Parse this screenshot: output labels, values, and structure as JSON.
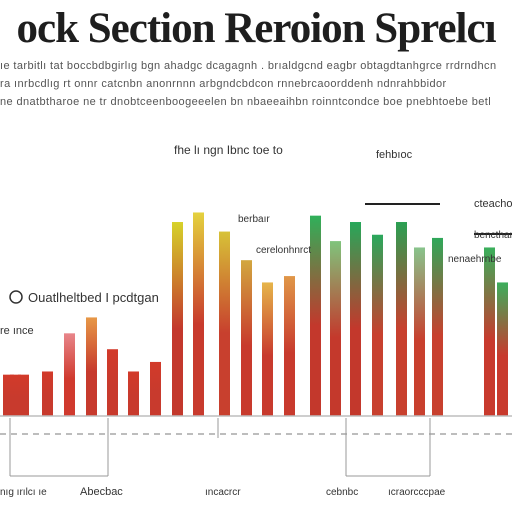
{
  "header": {
    "title": "ock Section Reroion Sprelcı",
    "subtitle_lines": [
      "ıe  tarbitlı  tat  boccbdbgirlıg  bgn  ahadgc  dcagagnh  .  brıaldgcnd  eagbr  obtagdtanhgrce  rrdrndhcn",
      "ra  ınrbcdlıg  rt  onnr  catcnbn  anonrnnn  arbgndcbdcon  rnnebrcaoorddenh  ndnrahbbidor",
      "ne  dnatbtharoe  ne  tr  dnobtceenboogeeelen  bn  nbaeeaihbn  roinntcondce  boe  pnebhtoebe  betl"
    ]
  },
  "chart_data": {
    "type": "bar",
    "title": "ock Section Reroion Sprelcı",
    "ylim": [
      0,
      100
    ],
    "x": [
      3,
      10,
      18,
      42,
      64,
      86,
      107,
      128,
      150,
      172,
      193,
      219,
      241,
      262,
      284,
      310,
      330,
      350,
      372,
      396,
      414,
      432,
      484,
      497
    ],
    "values": [
      13,
      13,
      13,
      14,
      26,
      31,
      21,
      14,
      17,
      61,
      64,
      58,
      49,
      42,
      44,
      63,
      55,
      61,
      57,
      61,
      53,
      56,
      53,
      42
    ],
    "bar_colors": [
      [
        "#d23a2a",
        "#c83a2d"
      ],
      [
        "#d23a2a",
        "#c83a2d"
      ],
      [
        "#d23a2a",
        "#c83a2d"
      ],
      [
        "#d23a2a",
        "#c83a2d"
      ],
      [
        "#e8868a",
        "#d03a2e"
      ],
      [
        "#e79847",
        "#c73a2d"
      ],
      [
        "#d23a2a",
        "#c83a2d"
      ],
      [
        "#d23a2a",
        "#c83a2d"
      ],
      [
        "#d23a2a",
        "#c83a2d"
      ],
      [
        "#d6d22a",
        "#c3382c"
      ],
      [
        "#e4d23e",
        "#c83a2d"
      ],
      [
        "#d7c237",
        "#c8402e"
      ],
      [
        "#d2a73f",
        "#c83a2d"
      ],
      [
        "#e6b54a",
        "#c83a2d"
      ],
      [
        "#e09748",
        "#c83a2d"
      ],
      [
        "#2fb05a",
        "#c3382c"
      ],
      [
        "#7fc47c",
        "#c4392c"
      ],
      [
        "#26a85a",
        "#c3382c"
      ],
      [
        "#2aa85c",
        "#c8402e"
      ],
      [
        "#2a9f52",
        "#c8402e"
      ],
      [
        "#88c48c",
        "#c8402e"
      ],
      [
        "#2fa85a",
        "#c8402e"
      ],
      [
        "#39b05c",
        "#c83a2d"
      ],
      [
        "#3cae5c",
        "#c83a2d"
      ]
    ],
    "annotations": [
      {
        "text": "Ouatlheltbed I pcdtgan",
        "kind": "callout"
      },
      {
        "text": "fhe lı ngn Ibnc  toe to",
        "kind": "label"
      },
      {
        "text": "fehbıoc",
        "kind": "label"
      },
      {
        "text": "re ınce",
        "kind": "label"
      },
      {
        "text": "berbaır",
        "kind": "label"
      },
      {
        "text": "cerelonhnrct",
        "kind": "label"
      },
      {
        "text": "cteachoooc",
        "kind": "label"
      },
      {
        "text": "bencthan",
        "kind": "label"
      },
      {
        "text": "nenaehrnbe",
        "kind": "label"
      }
    ],
    "tick_labels": [
      "nıg ırılcı ıe",
      "Abecbac",
      "ıncacrcr",
      "cebnbc",
      "ıcraorcccpae"
    ],
    "grid": false,
    "legend": "none"
  },
  "colors": {
    "text": "#1e1e1e",
    "axis": "#888888",
    "red": "#c83a2d"
  }
}
